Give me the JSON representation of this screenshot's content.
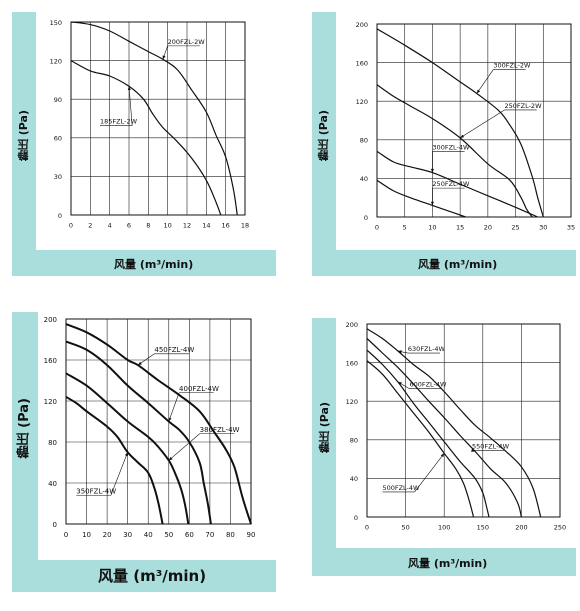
{
  "chart_data": [
    {
      "type": "line",
      "ylabel": "静压 (Pa)",
      "xlabel": "风量 (m³/min)",
      "xlim": [
        0,
        18
      ],
      "ylim": [
        0,
        150
      ],
      "xticks": [
        0,
        2,
        4,
        6,
        8,
        10,
        12,
        14,
        16,
        18
      ],
      "yticks": [
        0,
        30,
        60,
        90,
        120,
        150
      ],
      "grid": true,
      "series": [
        {
          "name": "200FZL-2W",
          "x": [
            0,
            2,
            4,
            6,
            8,
            9.5,
            11,
            12.5,
            14,
            15,
            16,
            16.8,
            17.2
          ],
          "y": [
            150,
            148,
            143,
            135,
            127,
            121,
            113,
            97,
            80,
            62,
            45,
            20,
            0
          ],
          "label_at": [
            10,
            133
          ]
        },
        {
          "name": "185FZL-2W",
          "x": [
            0,
            2,
            4,
            6,
            7.5,
            8.5,
            9.5,
            11,
            12.5,
            14,
            15,
            15.5
          ],
          "y": [
            120,
            112,
            108,
            100,
            90,
            78,
            68,
            57,
            44,
            27,
            10,
            0
          ],
          "label_at": [
            3,
            71
          ]
        }
      ]
    },
    {
      "type": "line",
      "ylabel": "静压 (Pa)",
      "xlabel": "风量 (m³/min)",
      "xlim": [
        0,
        35
      ],
      "ylim": [
        0,
        200
      ],
      "xticks": [
        0,
        5,
        10,
        15,
        20,
        25,
        30,
        35
      ],
      "yticks": [
        0,
        40,
        80,
        120,
        160,
        200
      ],
      "grid": true,
      "series": [
        {
          "name": "300FZL-2W",
          "x": [
            0,
            5,
            10,
            15,
            18,
            22,
            24,
            26,
            28,
            29,
            30
          ],
          "y": [
            195,
            178,
            160,
            140,
            128,
            110,
            95,
            75,
            42,
            20,
            0
          ],
          "label_at": [
            21,
            155
          ]
        },
        {
          "name": "250FZL-2W",
          "x": [
            0,
            3,
            6,
            10,
            15,
            20,
            24,
            26,
            27,
            28
          ],
          "y": [
            137,
            125,
            115,
            102,
            82,
            55,
            38,
            20,
            8,
            0
          ],
          "label_at": [
            23,
            113
          ]
        },
        {
          "name": "300FZL-4W",
          "x": [
            0,
            3,
            6,
            10,
            15,
            20,
            25,
            29
          ],
          "y": [
            68,
            57,
            52,
            46,
            34,
            22,
            10,
            0
          ],
          "label_at": [
            10,
            70
          ]
        },
        {
          "name": "250FZL-4W",
          "x": [
            0,
            3,
            6,
            10,
            13,
            16
          ],
          "y": [
            38,
            27,
            20,
            12,
            6,
            0
          ],
          "label_at": [
            10,
            32
          ]
        }
      ]
    },
    {
      "type": "line",
      "ylabel": "静压 (Pa)",
      "xlabel": "风量 (m³/min)",
      "xlim": [
        0,
        90
      ],
      "ylim": [
        0,
        200
      ],
      "xticks": [
        0,
        10,
        20,
        30,
        40,
        50,
        60,
        70,
        80,
        90
      ],
      "yticks": [
        0,
        40,
        80,
        120,
        160,
        200
      ],
      "grid": true,
      "series": [
        {
          "name": "450FZL-4W",
          "x": [
            0,
            10,
            20,
            30,
            35,
            45,
            55,
            65,
            72,
            78,
            82,
            86,
            90
          ],
          "y": [
            195,
            187,
            175,
            160,
            155,
            140,
            126,
            110,
            90,
            72,
            55,
            25,
            0
          ],
          "label_at": [
            43,
            168
          ]
        },
        {
          "name": "400FZL-4W",
          "x": [
            0,
            10,
            20,
            30,
            40,
            50,
            55,
            60,
            65,
            67,
            69,
            70.5
          ],
          "y": [
            178,
            170,
            155,
            135,
            118,
            100,
            92,
            80,
            60,
            40,
            20,
            0
          ],
          "label_at": [
            55,
            130
          ]
        },
        {
          "name": "380FZL-4W",
          "x": [
            0,
            10,
            20,
            30,
            40,
            45,
            50,
            53,
            56,
            58,
            59.5
          ],
          "y": [
            147,
            135,
            118,
            100,
            85,
            75,
            62,
            50,
            34,
            18,
            0
          ],
          "label_at": [
            65,
            90
          ]
        },
        {
          "name": "350FZL-4W",
          "x": [
            0,
            5,
            10,
            20,
            25,
            30,
            35,
            40,
            43,
            45,
            47
          ],
          "y": [
            124,
            118,
            110,
            95,
            85,
            70,
            60,
            50,
            35,
            20,
            0
          ],
          "label_at": [
            5,
            30
          ]
        }
      ]
    },
    {
      "type": "line",
      "ylabel": "静压 (Pa)",
      "xlabel": "风量 (m³/min)",
      "xlim": [
        0,
        250
      ],
      "ylim": [
        0,
        200
      ],
      "xticks": [
        0,
        50,
        100,
        150,
        200,
        250
      ],
      "yticks": [
        0,
        40,
        80,
        120,
        160,
        200
      ],
      "grid": true,
      "series": [
        {
          "name": "630FZL-4W",
          "x": [
            0,
            20,
            40,
            60,
            80,
            100,
            120,
            140,
            160,
            180,
            200,
            215,
            225
          ],
          "y": [
            195,
            185,
            172,
            158,
            146,
            130,
            112,
            95,
            82,
            68,
            52,
            30,
            0
          ],
          "label_at": [
            53,
            172
          ]
        },
        {
          "name": "550FZL-4W",
          "x": [
            0,
            20,
            40,
            60,
            80,
            100,
            120,
            140,
            160,
            180,
            195,
            200
          ],
          "y": [
            185,
            170,
            155,
            138,
            120,
            103,
            85,
            68,
            50,
            35,
            15,
            0
          ],
          "label_at": [
            136,
            71
          ]
        },
        {
          "name": "600FZL-4W",
          "x": [
            0,
            20,
            40,
            60,
            80,
            100,
            120,
            140,
            150,
            155,
            158
          ],
          "y": [
            173,
            158,
            140,
            118,
            98,
            78,
            58,
            40,
            25,
            10,
            0
          ],
          "label_at": [
            55,
            135
          ]
        },
        {
          "name": "500FZL-4W",
          "x": [
            0,
            20,
            40,
            60,
            80,
            100,
            115,
            125,
            132,
            138
          ],
          "y": [
            162,
            148,
            128,
            108,
            88,
            66,
            50,
            35,
            18,
            0
          ],
          "label_at": [
            20,
            28
          ]
        }
      ]
    }
  ]
}
